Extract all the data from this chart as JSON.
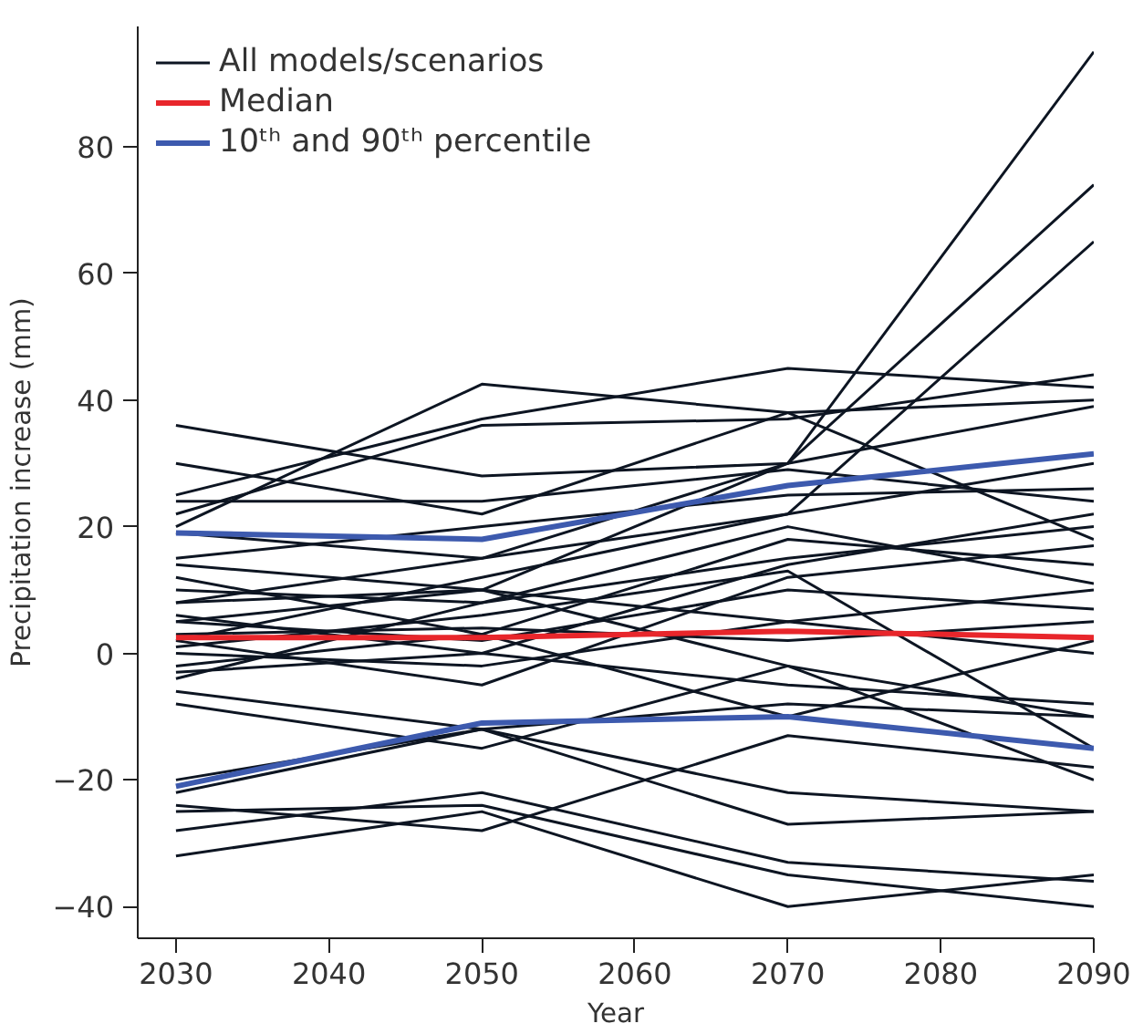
{
  "chart_data": {
    "type": "line",
    "xlabel": "Year",
    "ylabel": "Precipitation increase (mm)",
    "x": [
      2030,
      2050,
      2070,
      2090
    ],
    "xlim": [
      2027.5,
      2090
    ],
    "xticks": [
      2030,
      2040,
      2050,
      2060,
      2070,
      2080,
      2090
    ],
    "ylim": [
      -45,
      99
    ],
    "yticks": [
      -40,
      -20,
      0,
      20,
      40,
      60,
      80
    ],
    "grid": false,
    "legend": "top left",
    "marker": "none",
    "line_style": "solid",
    "series": [
      {
        "name": "All models/scenarios",
        "color": "#0d1522",
        "values": [
          5,
          10,
          30,
          95
        ]
      },
      {
        "color": "#0d1522",
        "values": [
          8,
          15,
          30,
          74
        ]
      },
      {
        "color": "#0d1522",
        "values": [
          2,
          12,
          22,
          65
        ]
      },
      {
        "color": "#0d1522",
        "values": [
          36,
          28,
          30,
          39
        ]
      },
      {
        "color": "#0d1522",
        "values": [
          20,
          42.5,
          38,
          40
        ]
      },
      {
        "color": "#0d1522",
        "values": [
          25,
          37,
          45,
          42
        ]
      },
      {
        "color": "#0d1522",
        "values": [
          22,
          36,
          37,
          44
        ]
      },
      {
        "color": "#0d1522",
        "values": [
          30,
          22,
          38,
          18
        ]
      },
      {
        "color": "#0d1522",
        "values": [
          24,
          24,
          29,
          24
        ]
      },
      {
        "color": "#0d1522",
        "values": [
          19,
          15,
          22,
          30
        ]
      },
      {
        "color": "#0d1522",
        "values": [
          15,
          20,
          25,
          26
        ]
      },
      {
        "color": "#0d1522",
        "values": [
          10,
          8,
          15,
          20
        ]
      },
      {
        "color": "#0d1522",
        "values": [
          12,
          3,
          18,
          14
        ]
      },
      {
        "color": "#0d1522",
        "values": [
          8,
          10,
          5,
          10
        ]
      },
      {
        "color": "#0d1522",
        "values": [
          5,
          2,
          10,
          7
        ]
      },
      {
        "color": "#0d1522",
        "values": [
          3,
          4,
          2,
          5
        ]
      },
      {
        "color": "#0d1522",
        "values": [
          0,
          -2,
          5,
          0
        ]
      },
      {
        "color": "#0d1522",
        "values": [
          -3,
          0,
          -5,
          -8
        ]
      },
      {
        "color": "#0d1522",
        "values": [
          -6,
          -12,
          -8,
          -10
        ]
      },
      {
        "color": "#0d1522",
        "values": [
          -8,
          -15,
          -2,
          -20
        ]
      },
      {
        "color": "#0d1522",
        "values": [
          -20,
          -12,
          -22,
          -25
        ]
      },
      {
        "color": "#0d1522",
        "values": [
          -24,
          -28,
          -13,
          -18
        ]
      },
      {
        "color": "#0d1522",
        "values": [
          -25,
          -24,
          -35,
          -40
        ]
      },
      {
        "color": "#0d1522",
        "values": [
          -28,
          -22,
          -33,
          -36
        ]
      },
      {
        "color": "#0d1522",
        "values": [
          -32,
          -25,
          -40,
          -35
        ]
      },
      {
        "color": "#0d1522",
        "values": [
          -22,
          -12,
          -27,
          -25
        ]
      },
      {
        "color": "#0d1522",
        "values": [
          1,
          6,
          13,
          -15
        ]
      },
      {
        "color": "#0d1522",
        "values": [
          2,
          -5,
          12,
          17
        ]
      },
      {
        "color": "#0d1522",
        "values": [
          -2,
          3,
          -10,
          2
        ]
      },
      {
        "color": "#0d1522",
        "values": [
          14,
          10,
          -2,
          -10
        ]
      },
      {
        "color": "#0d1522",
        "values": [
          6,
          0,
          14,
          22
        ]
      },
      {
        "color": "#0d1522",
        "values": [
          -4,
          8,
          20,
          11
        ]
      },
      {
        "name": "Median",
        "color": "#e8262b",
        "values": [
          2.5,
          2.5,
          3.5,
          2.5
        ]
      },
      {
        "name": "10ᵗʰ and 90ᵗʰ percentile",
        "color": "#3d5aae",
        "values": [
          19,
          18,
          26.5,
          31.5
        ]
      },
      {
        "color": "#3d5aae",
        "values": [
          -21,
          -11,
          -10,
          -15
        ]
      }
    ]
  }
}
